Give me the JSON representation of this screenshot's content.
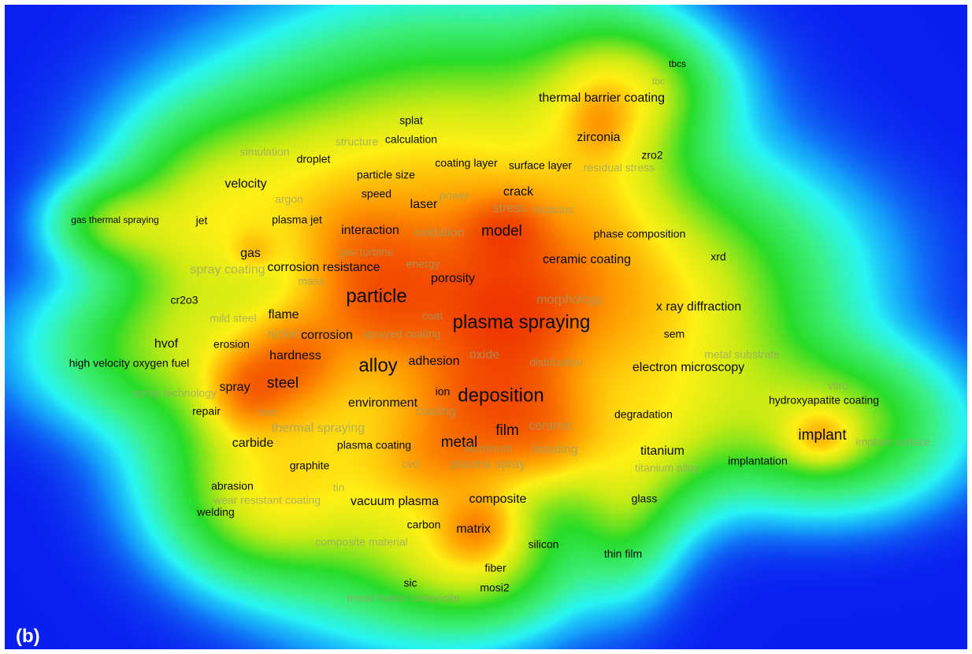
{
  "panel_label": "(b)",
  "colors": {
    "background": "#0a1ef0",
    "border": "#ffffff",
    "visible_text": "#0a0a0a",
    "faint_text": "#9aa06a",
    "label_text": "#ffffff"
  },
  "keywords": [
    {
      "name": "tbcs",
      "tier": 4
    },
    {
      "name": "tbc",
      "tier": 4,
      "faint": true
    },
    {
      "name": "thermal barrier coating",
      "tier": 2
    },
    {
      "name": "zirconia",
      "tier": 2
    },
    {
      "name": "zro2",
      "tier": 3
    },
    {
      "name": "residual stress",
      "tier": 3,
      "faint": true
    },
    {
      "name": "splat",
      "tier": 3
    },
    {
      "name": "calculation",
      "tier": 3
    },
    {
      "name": "structure",
      "tier": 3,
      "faint": true
    },
    {
      "name": "simulation",
      "tier": 3,
      "faint": true
    },
    {
      "name": "droplet",
      "tier": 3
    },
    {
      "name": "coating layer",
      "tier": 3
    },
    {
      "name": "surface layer",
      "tier": 3
    },
    {
      "name": "particle size",
      "tier": 3
    },
    {
      "name": "velocity",
      "tier": 2
    },
    {
      "name": "speed",
      "tier": 3
    },
    {
      "name": "power",
      "tier": 3,
      "faint": true
    },
    {
      "name": "crack",
      "tier": 2
    },
    {
      "name": "argon",
      "tier": 3,
      "faint": true
    },
    {
      "name": "laser",
      "tier": 2
    },
    {
      "name": "stress",
      "tier": 2,
      "faint": true
    },
    {
      "name": "modulus",
      "tier": 3,
      "faint": true
    },
    {
      "name": "gas thermal spraying",
      "tier": 4
    },
    {
      "name": "jet",
      "tier": 3
    },
    {
      "name": "plasma jet",
      "tier": 3
    },
    {
      "name": "interaction",
      "tier": 2
    },
    {
      "name": "oxidation",
      "tier": 2,
      "faint": true
    },
    {
      "name": "model",
      "tier": 1
    },
    {
      "name": "phase composition",
      "tier": 3
    },
    {
      "name": "gas",
      "tier": 2
    },
    {
      "name": "gas turbine",
      "tier": 3,
      "faint": true
    },
    {
      "name": "energy",
      "tier": 3,
      "faint": true
    },
    {
      "name": "ceramic coating",
      "tier": 2
    },
    {
      "name": "xrd",
      "tier": 3
    },
    {
      "name": "spray coating",
      "tier": 2,
      "faint": true
    },
    {
      "name": "corrosion resistance",
      "tier": 2
    },
    {
      "name": "mass",
      "tier": 3,
      "faint": true
    },
    {
      "name": "porosity",
      "tier": 2
    },
    {
      "name": "particle",
      "tier": 0
    },
    {
      "name": "morphology",
      "tier": 2,
      "faint": true
    },
    {
      "name": "cr2o3",
      "tier": 3
    },
    {
      "name": "x ray diffraction",
      "tier": 2
    },
    {
      "name": "flame",
      "tier": 2
    },
    {
      "name": "mild steel",
      "tier": 3,
      "faint": true
    },
    {
      "name": "coat",
      "tier": 3,
      "faint": true
    },
    {
      "name": "plasma spraying",
      "tier": 0
    },
    {
      "name": "sem",
      "tier": 3
    },
    {
      "name": "nickel",
      "tier": 2,
      "faint": true
    },
    {
      "name": "corrosion",
      "tier": 2
    },
    {
      "name": "sprayed coating",
      "tier": 3,
      "faint": true
    },
    {
      "name": "hvof",
      "tier": 2
    },
    {
      "name": "erosion",
      "tier": 3
    },
    {
      "name": "hardness",
      "tier": 2
    },
    {
      "name": "metal substrate",
      "tier": 3,
      "faint": true
    },
    {
      "name": "alloy",
      "tier": 0
    },
    {
      "name": "adhesion",
      "tier": 2
    },
    {
      "name": "oxide",
      "tier": 2,
      "faint": true
    },
    {
      "name": "distribution",
      "tier": 3,
      "faint": true
    },
    {
      "name": "high velocity oxygen fuel",
      "tier": 3
    },
    {
      "name": "electron microscopy",
      "tier": 2
    },
    {
      "name": "vitro",
      "tier": 3,
      "faint": true
    },
    {
      "name": "steel",
      "tier": 1
    },
    {
      "name": "spray",
      "tier": 2
    },
    {
      "name": "spray technology",
      "tier": 3,
      "faint": true
    },
    {
      "name": "ion",
      "tier": 3
    },
    {
      "name": "deposition",
      "tier": 0
    },
    {
      "name": "hydroxyapatite coating",
      "tier": 3
    },
    {
      "name": "repair",
      "tier": 3
    },
    {
      "name": "iron",
      "tier": 3,
      "faint": true
    },
    {
      "name": "environment",
      "tier": 2
    },
    {
      "name": "coating",
      "tier": 2,
      "faint": true
    },
    {
      "name": "degradation",
      "tier": 3
    },
    {
      "name": "thermal spraying",
      "tier": 2,
      "faint": true
    },
    {
      "name": "ceramic",
      "tier": 2,
      "faint": true
    },
    {
      "name": "film",
      "tier": 1
    },
    {
      "name": "implant",
      "tier": 1
    },
    {
      "name": "implant surface",
      "tier": 3,
      "faint": true
    },
    {
      "name": "carbide",
      "tier": 2
    },
    {
      "name": "plasma coating",
      "tier": 3
    },
    {
      "name": "metal",
      "tier": 1
    },
    {
      "name": "aluminum",
      "tier": 3,
      "faint": true
    },
    {
      "name": "bonding",
      "tier": 2,
      "faint": true
    },
    {
      "name": "titanium",
      "tier": 2
    },
    {
      "name": "graphite",
      "tier": 3
    },
    {
      "name": "cvd",
      "tier": 3,
      "faint": true
    },
    {
      "name": "plasma spray",
      "tier": 2,
      "faint": true
    },
    {
      "name": "implantation",
      "tier": 3
    },
    {
      "name": "titanium alloy",
      "tier": 3,
      "faint": true
    },
    {
      "name": "abrasion",
      "tier": 3
    },
    {
      "name": "tin",
      "tier": 3,
      "faint": true
    },
    {
      "name": "wear resistant coating",
      "tier": 3,
      "faint": true
    },
    {
      "name": "composite",
      "tier": 2
    },
    {
      "name": "glass",
      "tier": 3
    },
    {
      "name": "vacuum plasma",
      "tier": 2
    },
    {
      "name": "welding",
      "tier": 3
    },
    {
      "name": "carbon",
      "tier": 3
    },
    {
      "name": "matrix",
      "tier": 2
    },
    {
      "name": "composite material",
      "tier": 3,
      "faint": true
    },
    {
      "name": "silicon",
      "tier": 3
    },
    {
      "name": "thin film",
      "tier": 3
    },
    {
      "name": "fiber",
      "tier": 3
    },
    {
      "name": "sic",
      "tier": 3
    },
    {
      "name": "mosi2",
      "tier": 3
    },
    {
      "name": "metal matrix composite",
      "tier": 3,
      "faint": true
    }
  ]
}
